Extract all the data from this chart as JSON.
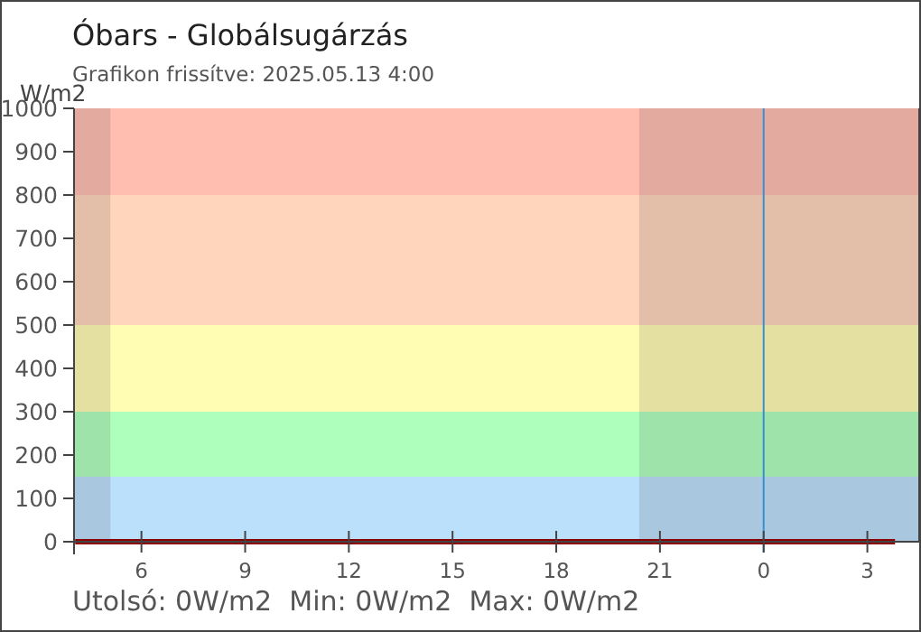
{
  "chart_data": {
    "type": "line",
    "title": "Óbars - Globálsugárzás",
    "subtitle": "Grafikon frissítve: 2025.05.13 4:00",
    "ylabel": "W/m2",
    "annotations": [
      "Utolsó: 0W/m2  Min: 0W/m2  Max: 0W/m2"
    ],
    "x": [
      "2025-05-12T04:05",
      "2025-05-13T03:48"
    ],
    "series": [
      {
        "color": "#8b0000",
        "values": [
          0,
          0
        ]
      }
    ],
    "xlim": [
      "2025-05-12T04:03",
      "2025-05-13T04:30"
    ],
    "xticks": [
      {
        "value": "2025-05-12T06:00",
        "label": "6"
      },
      {
        "value": "2025-05-12T09:00",
        "label": "9"
      },
      {
        "value": "2025-05-12T12:00",
        "label": "12"
      },
      {
        "value": "2025-05-12T15:00",
        "label": "15"
      },
      {
        "value": "2025-05-12T18:00",
        "label": "18"
      },
      {
        "value": "2025-05-12T21:00",
        "label": "21"
      },
      {
        "value": "2025-05-13T00:00",
        "label": "0"
      },
      {
        "value": "2025-05-13T03:00",
        "label": "3"
      }
    ],
    "ylim": [
      0,
      1000
    ],
    "yticks": [
      0,
      100,
      200,
      300,
      400,
      500,
      600,
      700,
      800,
      900,
      1000
    ],
    "grid": false,
    "marker": "none",
    "line_style": "solid",
    "bands": [
      {
        "axis": "y",
        "from": 0,
        "to": 150,
        "color": "#bbe0fb"
      },
      {
        "axis": "y",
        "from": 150,
        "to": 300,
        "color": "#aeffbb"
      },
      {
        "axis": "y",
        "from": 300,
        "to": 500,
        "color": "#fffcb3"
      },
      {
        "axis": "y",
        "from": 500,
        "to": 800,
        "color": "#ffd5bb"
      },
      {
        "axis": "y",
        "from": 800,
        "to": 1000,
        "color": "#ffbeb0"
      },
      {
        "axis": "x",
        "from": "2025-05-12T04:03",
        "to": "2025-05-12T05:06",
        "color": "#404040"
      },
      {
        "axis": "x",
        "from": "2025-05-12T20:24",
        "to": "2025-05-13T04:30",
        "color": "#404040"
      }
    ],
    "ref_lines": [
      {
        "axis": "x",
        "value": "2025-05-13T00:00",
        "color": "#3a8fd0"
      }
    ]
  }
}
